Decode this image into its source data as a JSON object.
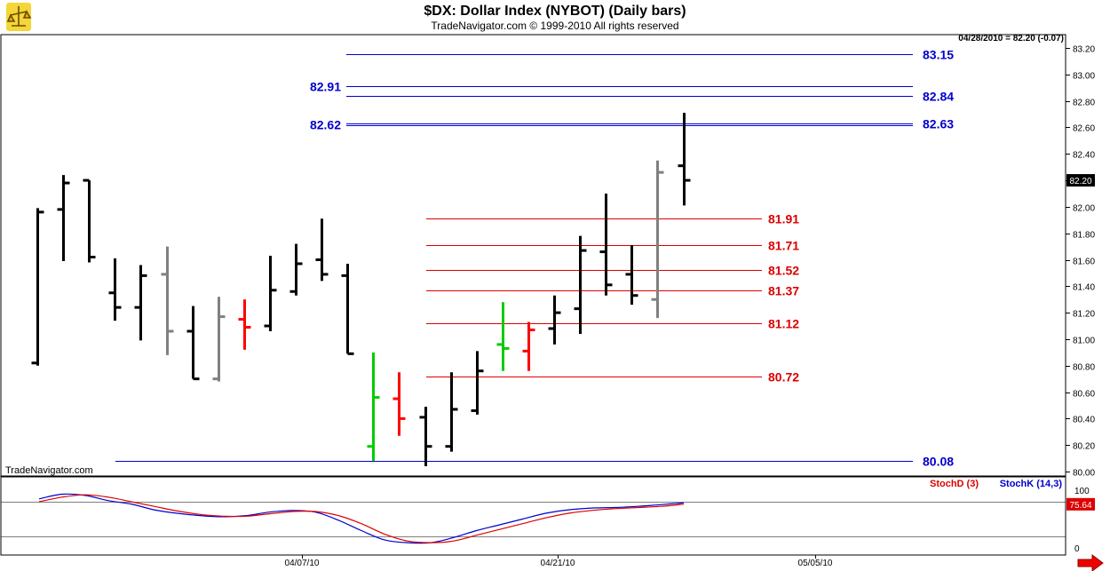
{
  "header": {
    "title": "$DX:  Dollar Index (NYBOT)  (Daily bars)",
    "copyright": "TradeNavigator.com © 1999-2010 All rights reserved",
    "last_quote": "04/28/2010 = 82.20 (-0.07)",
    "watermark": "TradeNavigator.com"
  },
  "colors": {
    "up_bar": "#000000",
    "gray_bar": "#808080",
    "red_bar": "#ff0000",
    "green_bar": "#00cc00",
    "blue_level": "#0000cc",
    "red_level": "#dd0000",
    "stoch_d": "#dd0000",
    "stoch_k": "#0000cc"
  },
  "chart_data": {
    "type": "ohlc",
    "y_axis": {
      "min": 80.0,
      "max": 83.2,
      "ticks": [
        "83.20",
        "83.00",
        "82.80",
        "82.60",
        "82.40",
        "82.20",
        "82.00",
        "81.80",
        "81.60",
        "81.40",
        "81.20",
        "81.00",
        "80.80",
        "80.60",
        "80.40",
        "80.20",
        "80.00"
      ]
    },
    "x_axis": {
      "ticks": [
        "04/07/10",
        "04/21/10",
        "05/05/10"
      ]
    },
    "current_price": "82.20",
    "bars": [
      {
        "o": 80.82,
        "h": 81.99,
        "l": 80.8,
        "c": 81.96,
        "color": "black"
      },
      {
        "o": 81.98,
        "h": 82.24,
        "l": 81.59,
        "c": 82.18,
        "color": "black"
      },
      {
        "o": 82.2,
        "h": 82.2,
        "l": 81.58,
        "c": 81.62,
        "color": "black"
      },
      {
        "o": 81.35,
        "h": 81.61,
        "l": 81.14,
        "c": 81.24,
        "color": "black"
      },
      {
        "o": 81.24,
        "h": 81.56,
        "l": 80.99,
        "c": 81.48,
        "color": "black"
      },
      {
        "o": 81.49,
        "h": 81.7,
        "l": 80.88,
        "c": 81.06,
        "color": "gray"
      },
      {
        "o": 81.06,
        "h": 81.25,
        "l": 80.7,
        "c": 80.7,
        "color": "black"
      },
      {
        "o": 80.7,
        "h": 81.32,
        "l": 80.68,
        "c": 81.17,
        "color": "gray"
      },
      {
        "o": 81.15,
        "h": 81.3,
        "l": 80.92,
        "c": 81.09,
        "color": "red"
      },
      {
        "o": 81.1,
        "h": 81.63,
        "l": 81.06,
        "c": 81.37,
        "color": "black"
      },
      {
        "o": 81.36,
        "h": 81.72,
        "l": 81.33,
        "c": 81.57,
        "color": "black"
      },
      {
        "o": 81.6,
        "h": 81.91,
        "l": 81.44,
        "c": 81.49,
        "color": "black"
      },
      {
        "o": 81.48,
        "h": 81.57,
        "l": 80.89,
        "c": 80.89,
        "color": "black"
      },
      {
        "o": 80.19,
        "h": 80.9,
        "l": 80.08,
        "c": 80.56,
        "color": "green"
      },
      {
        "o": 80.55,
        "h": 80.75,
        "l": 80.27,
        "c": 80.4,
        "color": "red"
      },
      {
        "o": 80.41,
        "h": 80.49,
        "l": 80.04,
        "c": 80.19,
        "color": "black"
      },
      {
        "o": 80.19,
        "h": 80.75,
        "l": 80.15,
        "c": 80.47,
        "color": "black"
      },
      {
        "o": 80.46,
        "h": 80.91,
        "l": 80.43,
        "c": 80.76,
        "color": "black"
      },
      {
        "o": 80.96,
        "h": 81.28,
        "l": 80.76,
        "c": 80.93,
        "color": "green"
      },
      {
        "o": 80.91,
        "h": 81.13,
        "l": 80.76,
        "c": 81.07,
        "color": "red"
      },
      {
        "o": 81.08,
        "h": 81.33,
        "l": 80.96,
        "c": 81.2,
        "color": "black"
      },
      {
        "o": 81.23,
        "h": 81.78,
        "l": 81.04,
        "c": 81.67,
        "color": "black"
      },
      {
        "o": 81.66,
        "h": 82.1,
        "l": 81.33,
        "c": 81.41,
        "color": "black"
      },
      {
        "o": 81.49,
        "h": 81.71,
        "l": 81.26,
        "c": 81.33,
        "color": "black"
      },
      {
        "o": 81.3,
        "h": 82.35,
        "l": 81.16,
        "c": 82.26,
        "color": "gray"
      },
      {
        "o": 82.31,
        "h": 82.71,
        "l": 82.01,
        "c": 82.2,
        "color": "black"
      }
    ],
    "levels": [
      {
        "value": 83.15,
        "label": "83.15",
        "color": "blue",
        "label_side": "right"
      },
      {
        "value": 82.91,
        "label": "82.91",
        "color": "blue",
        "label_side": "left"
      },
      {
        "value": 82.84,
        "label": "82.84",
        "color": "blue",
        "label_side": "right"
      },
      {
        "value": 82.63,
        "label": "82.63",
        "color": "blue",
        "label_side": "right"
      },
      {
        "value": 82.62,
        "label": "82.62",
        "color": "blue",
        "label_side": "left"
      },
      {
        "value": 81.91,
        "label": "81.91",
        "color": "red",
        "label_side": "right"
      },
      {
        "value": 81.71,
        "label": "81.71",
        "color": "red",
        "label_side": "right"
      },
      {
        "value": 81.52,
        "label": "81.52",
        "color": "red",
        "label_side": "right"
      },
      {
        "value": 81.37,
        "label": "81.37",
        "color": "red",
        "label_side": "right"
      },
      {
        "value": 81.12,
        "label": "81.12",
        "color": "red",
        "label_side": "right"
      },
      {
        "value": 80.72,
        "label": "80.72",
        "color": "red",
        "label_side": "right"
      },
      {
        "value": 80.08,
        "label": "80.08",
        "color": "blue",
        "label_side": "right"
      }
    ],
    "stochastic": {
      "d_label": "StochD (3)",
      "k_label": "StochK (14,3)",
      "current_value": "75.64",
      "y_ticks": [
        "100",
        "0"
      ],
      "ref_lines": [
        80,
        20
      ],
      "k": [
        85,
        93,
        91,
        82,
        76,
        66,
        60,
        56,
        54,
        56,
        62,
        65,
        62,
        48,
        30,
        14,
        9,
        9,
        18,
        30,
        40,
        50,
        60,
        66,
        69,
        70,
        72,
        75,
        78
      ],
      "d": [
        80,
        88,
        92,
        88,
        80,
        72,
        64,
        58,
        55,
        55,
        59,
        63,
        63,
        56,
        42,
        24,
        12,
        9,
        12,
        22,
        32,
        42,
        52,
        60,
        65,
        68,
        70,
        72,
        75.64
      ]
    }
  }
}
